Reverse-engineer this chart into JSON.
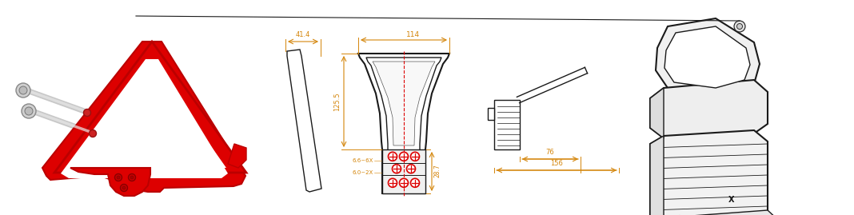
{
  "bg_color": "#ffffff",
  "fig_width": 10.68,
  "fig_height": 2.69,
  "dpi": 100,
  "dim_color": "#D4850A",
  "red_color": "#DD0000",
  "line_color": "#1a1a1a",
  "gray_color": "#999999",
  "light_gray": "#cccccc",
  "annotations": {
    "dim_114": "114",
    "dim_41_4": "41.4",
    "dim_125_5": "125.5",
    "dim_28_7": "28.7",
    "dim_6_6_6x": "6.6~6X",
    "dim_6_0_2x": "6.0~2X",
    "dim_76": "76",
    "dim_156": "156"
  }
}
